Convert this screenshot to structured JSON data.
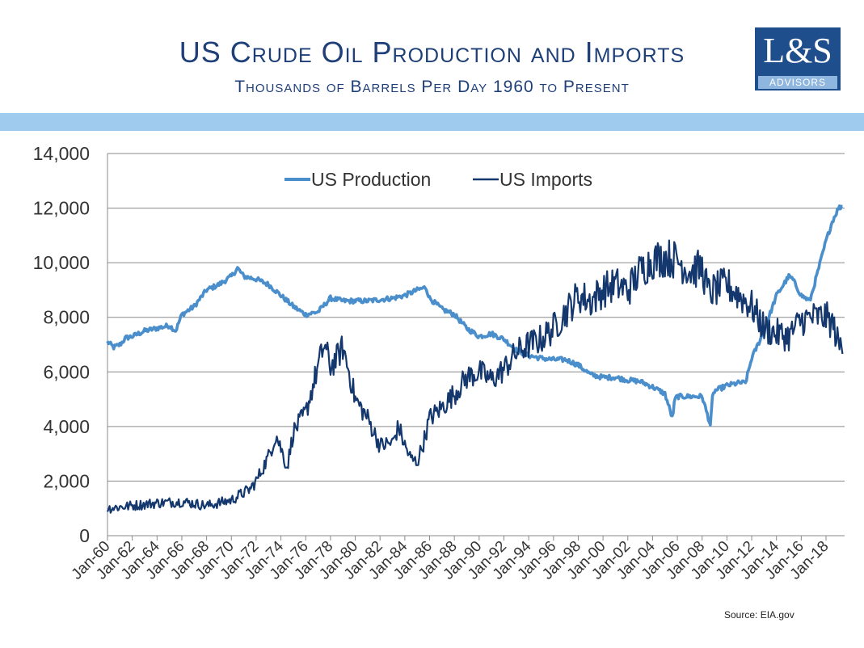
{
  "header": {
    "title": "US Crude Oil Production and Imports",
    "subtitle": "Thousands of Barrels Per Day 1960 to Present"
  },
  "logo": {
    "main": "L&S",
    "sub": "ADVISORS"
  },
  "source": "Source:  EIA.gov",
  "colors": {
    "production": "#4a8fcb",
    "imports": "#14386e",
    "band": "#9fcbef",
    "title": "#1f3f78"
  },
  "chart_data": {
    "type": "line",
    "ylim": [
      0,
      14000
    ],
    "yticks": [
      "0",
      "2,000",
      "4,000",
      "6,000",
      "8,000",
      "10,000",
      "12,000",
      "14,000"
    ],
    "xlim": [
      "1960-01",
      "2019-06"
    ],
    "xticks": [
      "Jan-60",
      "Jan-62",
      "Jan-64",
      "Jan-66",
      "Jan-68",
      "Jan-70",
      "Jan-72",
      "Jan-74",
      "Jan-76",
      "Jan-78",
      "Jan-80",
      "Jan-82",
      "Jan-84",
      "Jan-86",
      "Jan-88",
      "Jan-90",
      "Jan-92",
      "Jan-94",
      "Jan-96",
      "Jan-98",
      "Jan-00",
      "Jan-02",
      "Jan-04",
      "Jan-06",
      "Jan-08",
      "Jan-10",
      "Jan-12",
      "Jan-14",
      "Jan-16",
      "Jan-18"
    ],
    "grid": true,
    "legend_position": "top-center",
    "series": [
      {
        "name": "US Production",
        "x": [
          1960.0,
          1960.5,
          1961.0,
          1961.5,
          1962.0,
          1963.0,
          1964.0,
          1965.0,
          1965.5,
          1966.0,
          1967.0,
          1967.5,
          1968.0,
          1969.0,
          1970.0,
          1970.5,
          1971.0,
          1972.0,
          1973.0,
          1974.0,
          1975.0,
          1976.0,
          1977.0,
          1978.0,
          1979.0,
          1980.0,
          1981.0,
          1982.0,
          1983.0,
          1984.0,
          1985.0,
          1985.7,
          1986.0,
          1987.0,
          1988.0,
          1989.0,
          1990.0,
          1991.0,
          1992.0,
          1993.0,
          1994.0,
          1995.0,
          1996.0,
          1997.0,
          1998.0,
          1999.0,
          2000.0,
          2001.0,
          2002.0,
          2003.0,
          2004.0,
          2005.0,
          2005.6,
          2005.8,
          2006.0,
          2007.0,
          2008.0,
          2008.7,
          2008.8,
          2009.0,
          2010.0,
          2011.0,
          2011.5,
          2012.0,
          2013.0,
          2014.0,
          2015.0,
          2015.3,
          2016.0,
          2016.7,
          2017.0,
          2018.0,
          2018.5,
          2019.0,
          2019.4
        ],
        "y": [
          7100,
          6900,
          7000,
          7250,
          7300,
          7500,
          7600,
          7700,
          7500,
          8100,
          8400,
          8700,
          9000,
          9200,
          9500,
          9800,
          9500,
          9400,
          9200,
          8800,
          8400,
          8100,
          8200,
          8700,
          8600,
          8600,
          8600,
          8650,
          8700,
          8800,
          9000,
          9100,
          8700,
          8300,
          8100,
          7600,
          7300,
          7400,
          7200,
          6800,
          6600,
          6500,
          6450,
          6450,
          6250,
          5900,
          5800,
          5800,
          5700,
          5650,
          5450,
          5200,
          4300,
          5000,
          5100,
          5100,
          5100,
          4000,
          5000,
          5300,
          5500,
          5600,
          5600,
          6500,
          7500,
          8800,
          9500,
          9400,
          8800,
          8600,
          9100,
          10800,
          11500,
          12000,
          12100
        ]
      },
      {
        "name": "US Imports",
        "x": [
          1960.0,
          1962.0,
          1964.0,
          1966.0,
          1968.0,
          1970.0,
          1970.7,
          1971.5,
          1972.0,
          1973.0,
          1973.6,
          1974.0,
          1974.5,
          1975.0,
          1976.0,
          1977.0,
          1977.5,
          1978.0,
          1978.5,
          1979.0,
          1979.5,
          1980.0,
          1981.0,
          1982.0,
          1983.0,
          1983.5,
          1984.0,
          1984.5,
          1985.0,
          1985.5,
          1986.0,
          1987.0,
          1988.0,
          1989.0,
          1990.0,
          1991.0,
          1992.0,
          1993.0,
          1994.0,
          1995.0,
          1996.0,
          1997.0,
          1998.0,
          1999.0,
          2000.0,
          2001.0,
          2002.0,
          2003.0,
          2004.0,
          2005.0,
          2006.0,
          2007.0,
          2008.0,
          2008.5,
          2009.0,
          2010.0,
          2011.0,
          2012.0,
          2013.0,
          2014.0,
          2015.0,
          2016.0,
          2017.0,
          2018.0,
          2018.6,
          2019.0,
          2019.4
        ],
        "y": [
          1000,
          1100,
          1200,
          1250,
          1100,
          1300,
          1500,
          1700,
          2000,
          2900,
          3700,
          3200,
          2500,
          3800,
          4500,
          6200,
          7000,
          6200,
          6500,
          6900,
          6000,
          5000,
          4300,
          3300,
          3400,
          4000,
          3300,
          2800,
          2700,
          3400,
          4300,
          4700,
          5200,
          5800,
          6000,
          5700,
          6100,
          6700,
          7000,
          7200,
          7600,
          8200,
          8800,
          8600,
          9000,
          9200,
          9000,
          9700,
          10100,
          10200,
          10100,
          9700,
          9800,
          8900,
          9000,
          9200,
          8800,
          8400,
          7600,
          7400,
          7300,
          7900,
          8000,
          8000,
          7700,
          7000,
          6900
        ]
      }
    ]
  }
}
